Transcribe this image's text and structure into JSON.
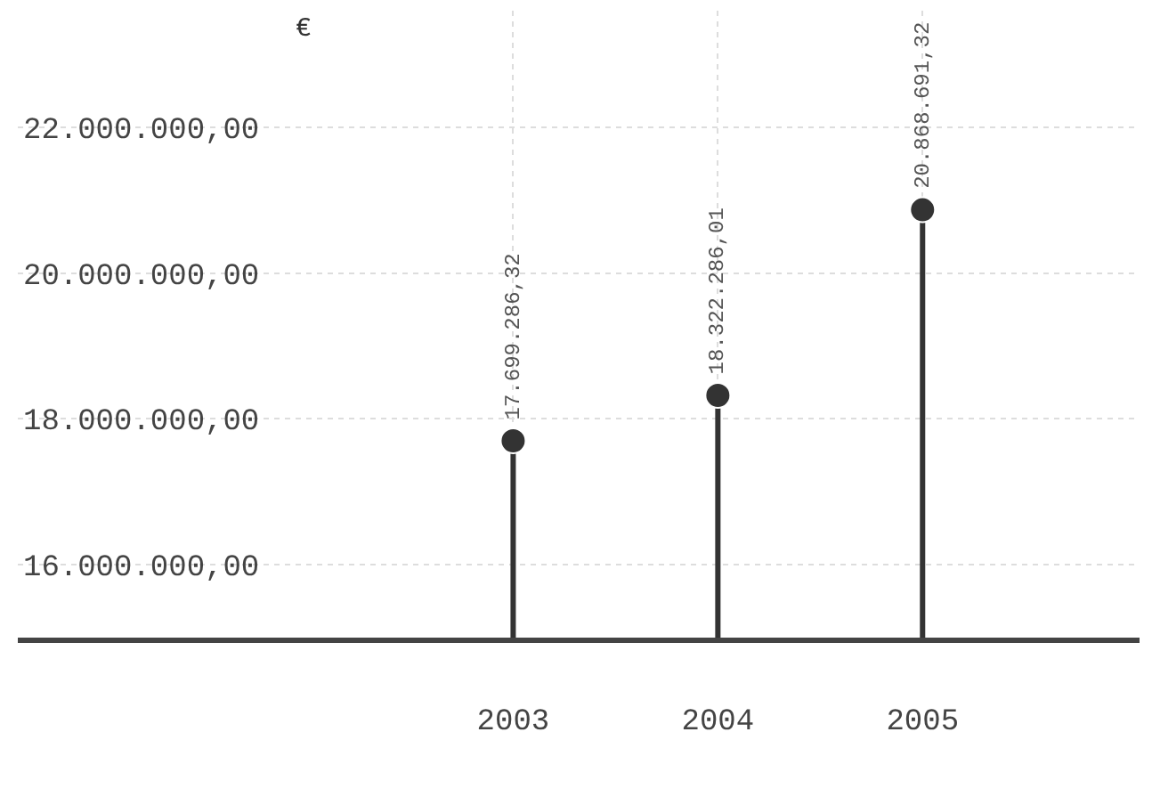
{
  "chart_data": {
    "type": "lollipop",
    "ylabel": "€",
    "categories": [
      "2003",
      "2004",
      "2005"
    ],
    "values": [
      17699286.32,
      18322286.01,
      20868691.32
    ],
    "value_labels": [
      "17.699.286,32",
      "18.322.286,01",
      "20.868.691,32"
    ],
    "color": "#333333",
    "ylim": [
      15000000,
      23600000
    ],
    "yticks": [
      {
        "value": 16000000,
        "label": "16.000.000,00"
      },
      {
        "value": 18000000,
        "label": "18.000.000,00"
      },
      {
        "value": 20000000,
        "label": "20.000.000,00"
      },
      {
        "value": 22000000,
        "label": "22.000.000,00"
      }
    ],
    "grid": true,
    "marker": "circle"
  }
}
